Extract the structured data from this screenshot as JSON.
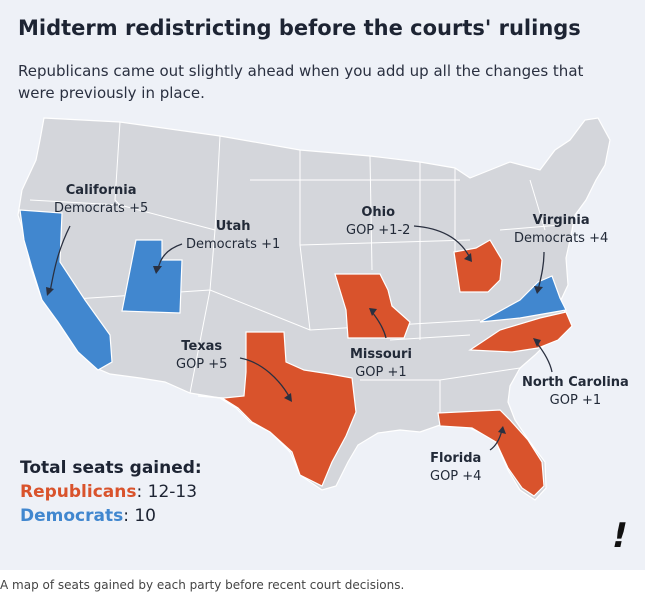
{
  "title": "Midterm redistricting before the courts' rulings",
  "subtitle": "Republicans came out slightly ahead when you add up all the changes that were previously in place.",
  "colors": {
    "gop": "#d9532c",
    "dem": "#4187cf",
    "base": "#d4d6db",
    "border": "#ffffff",
    "background": "#eef1f7"
  },
  "states": [
    {
      "name": "California",
      "value": "Democrats +5",
      "party": "dem"
    },
    {
      "name": "Utah",
      "value": "Democrats +1",
      "party": "dem"
    },
    {
      "name": "Ohio",
      "value": "GOP +1-2",
      "party": "gop"
    },
    {
      "name": "Virginia",
      "value": "Democrats +4",
      "party": "dem"
    },
    {
      "name": "Texas",
      "value": "GOP +5",
      "party": "gop"
    },
    {
      "name": "Missouri",
      "value": "GOP +1",
      "party": "gop"
    },
    {
      "name": "North Carolina",
      "value": "GOP +1",
      "party": "gop"
    },
    {
      "name": "Florida",
      "value": "GOP +4",
      "party": "gop"
    }
  ],
  "totals": {
    "heading": "Total seats gained:",
    "republicans_label": "Republicans",
    "republicans_value": ": 12-13",
    "democrats_label": "Democrats",
    "democrats_value": ": 10"
  },
  "logo": "!",
  "caption": "A map of seats gained by each party before recent court decisions."
}
